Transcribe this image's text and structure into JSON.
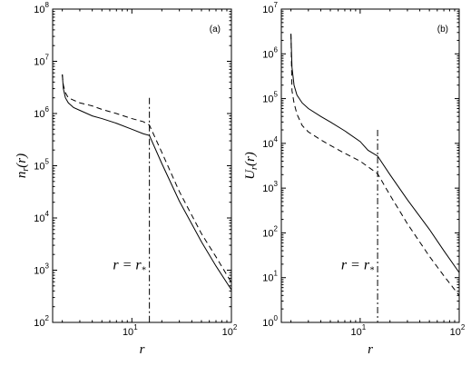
{
  "chart_data": [
    {
      "type": "line",
      "panel_label": "(a)",
      "xlabel": "r",
      "ylabel_main": "n",
      "ylabel_sub": "r",
      "ylabel_tail": "(r)",
      "xscale": "log",
      "yscale": "log",
      "xlim": [
        1.6,
        100
      ],
      "ylim": [
        100,
        100000000
      ],
      "x_ticks": [
        {
          "base": "10",
          "exp": "1",
          "value": 10
        },
        {
          "base": "10",
          "exp": "2",
          "value": 100
        }
      ],
      "y_ticks": [
        {
          "base": "10",
          "exp": "2",
          "value": 100
        },
        {
          "base": "10",
          "exp": "3",
          "value": 1000
        },
        {
          "base": "10",
          "exp": "4",
          "value": 10000
        },
        {
          "base": "10",
          "exp": "5",
          "value": 100000
        },
        {
          "base": "10",
          "exp": "6",
          "value": 1000000
        },
        {
          "base": "10",
          "exp": "7",
          "value": 10000000
        },
        {
          "base": "10",
          "exp": "8",
          "value": 100000000
        }
      ],
      "annotation": {
        "text_lhs": "r = r",
        "text_sub": "*",
        "x": 15,
        "y_top": 2000000
      },
      "series": [
        {
          "style": "solid",
          "x": [
            2.0,
            2.05,
            2.15,
            2.3,
            2.6,
            3.0,
            4.0,
            5.0,
            7.0,
            10.0,
            13.0,
            15.0,
            20.0,
            30.0,
            50.0,
            70.0,
            100.0
          ],
          "y": [
            5600000,
            3000000,
            2000000,
            1600000,
            1300000,
            1150000,
            900000,
            800000,
            650000,
            500000,
            410000,
            380000,
            110000,
            21000,
            3500,
            1200,
            420
          ]
        },
        {
          "style": "dashed",
          "x": [
            2.0,
            2.05,
            2.15,
            2.3,
            2.6,
            3.0,
            4.0,
            5.0,
            7.0,
            10.0,
            13.0,
            15.0,
            20.0,
            30.0,
            50.0,
            70.0,
            100.0
          ],
          "y": [
            5600000,
            3500000,
            2500000,
            2000000,
            1800000,
            1600000,
            1400000,
            1200000,
            1000000,
            800000,
            700000,
            600000,
            180000,
            32000,
            5000,
            1800,
            580
          ]
        }
      ]
    },
    {
      "type": "line",
      "panel_label": "(b)",
      "xlabel": "r",
      "ylabel_main": "U",
      "ylabel_sub": "r",
      "ylabel_tail": "(r)",
      "xscale": "log",
      "yscale": "log",
      "xlim": [
        1.6,
        100
      ],
      "ylim": [
        1,
        10000000
      ],
      "x_ticks": [
        {
          "base": "10",
          "exp": "1",
          "value": 10
        },
        {
          "base": "10",
          "exp": "2",
          "value": 100
        }
      ],
      "y_ticks": [
        {
          "base": "10",
          "exp": "0",
          "value": 1
        },
        {
          "base": "10",
          "exp": "1",
          "value": 10
        },
        {
          "base": "10",
          "exp": "2",
          "value": 100
        },
        {
          "base": "10",
          "exp": "3",
          "value": 1000
        },
        {
          "base": "10",
          "exp": "4",
          "value": 10000
        },
        {
          "base": "10",
          "exp": "5",
          "value": 100000
        },
        {
          "base": "10",
          "exp": "6",
          "value": 1000000
        },
        {
          "base": "10",
          "exp": "7",
          "value": 10000000
        }
      ],
      "annotation": {
        "text_lhs": "r = r",
        "text_sub": "*",
        "x": 15,
        "y_top": 20000
      },
      "series": [
        {
          "style": "solid",
          "x": [
            2.0,
            2.05,
            2.15,
            2.3,
            2.6,
            3.0,
            4.0,
            5.0,
            7.0,
            10.0,
            12.0,
            15.0,
            20.0,
            30.0,
            50.0,
            70.0,
            100.0
          ],
          "y": [
            2800000,
            500000,
            200000,
            120000,
            80000,
            60000,
            40000,
            30000,
            19000,
            11000,
            7000,
            5200,
            2000,
            550,
            120,
            40,
            13
          ]
        },
        {
          "style": "dashed",
          "x": [
            2.0,
            2.05,
            2.15,
            2.3,
            2.6,
            3.0,
            4.0,
            5.0,
            7.0,
            10.0,
            12.0,
            15.0,
            20.0,
            30.0,
            50.0,
            70.0,
            100.0
          ],
          "y": [
            2800000,
            150000,
            80000,
            45000,
            25000,
            18000,
            12000,
            9000,
            6000,
            4000,
            3000,
            2100,
            700,
            160,
            30,
            11,
            4
          ]
        }
      ]
    }
  ]
}
